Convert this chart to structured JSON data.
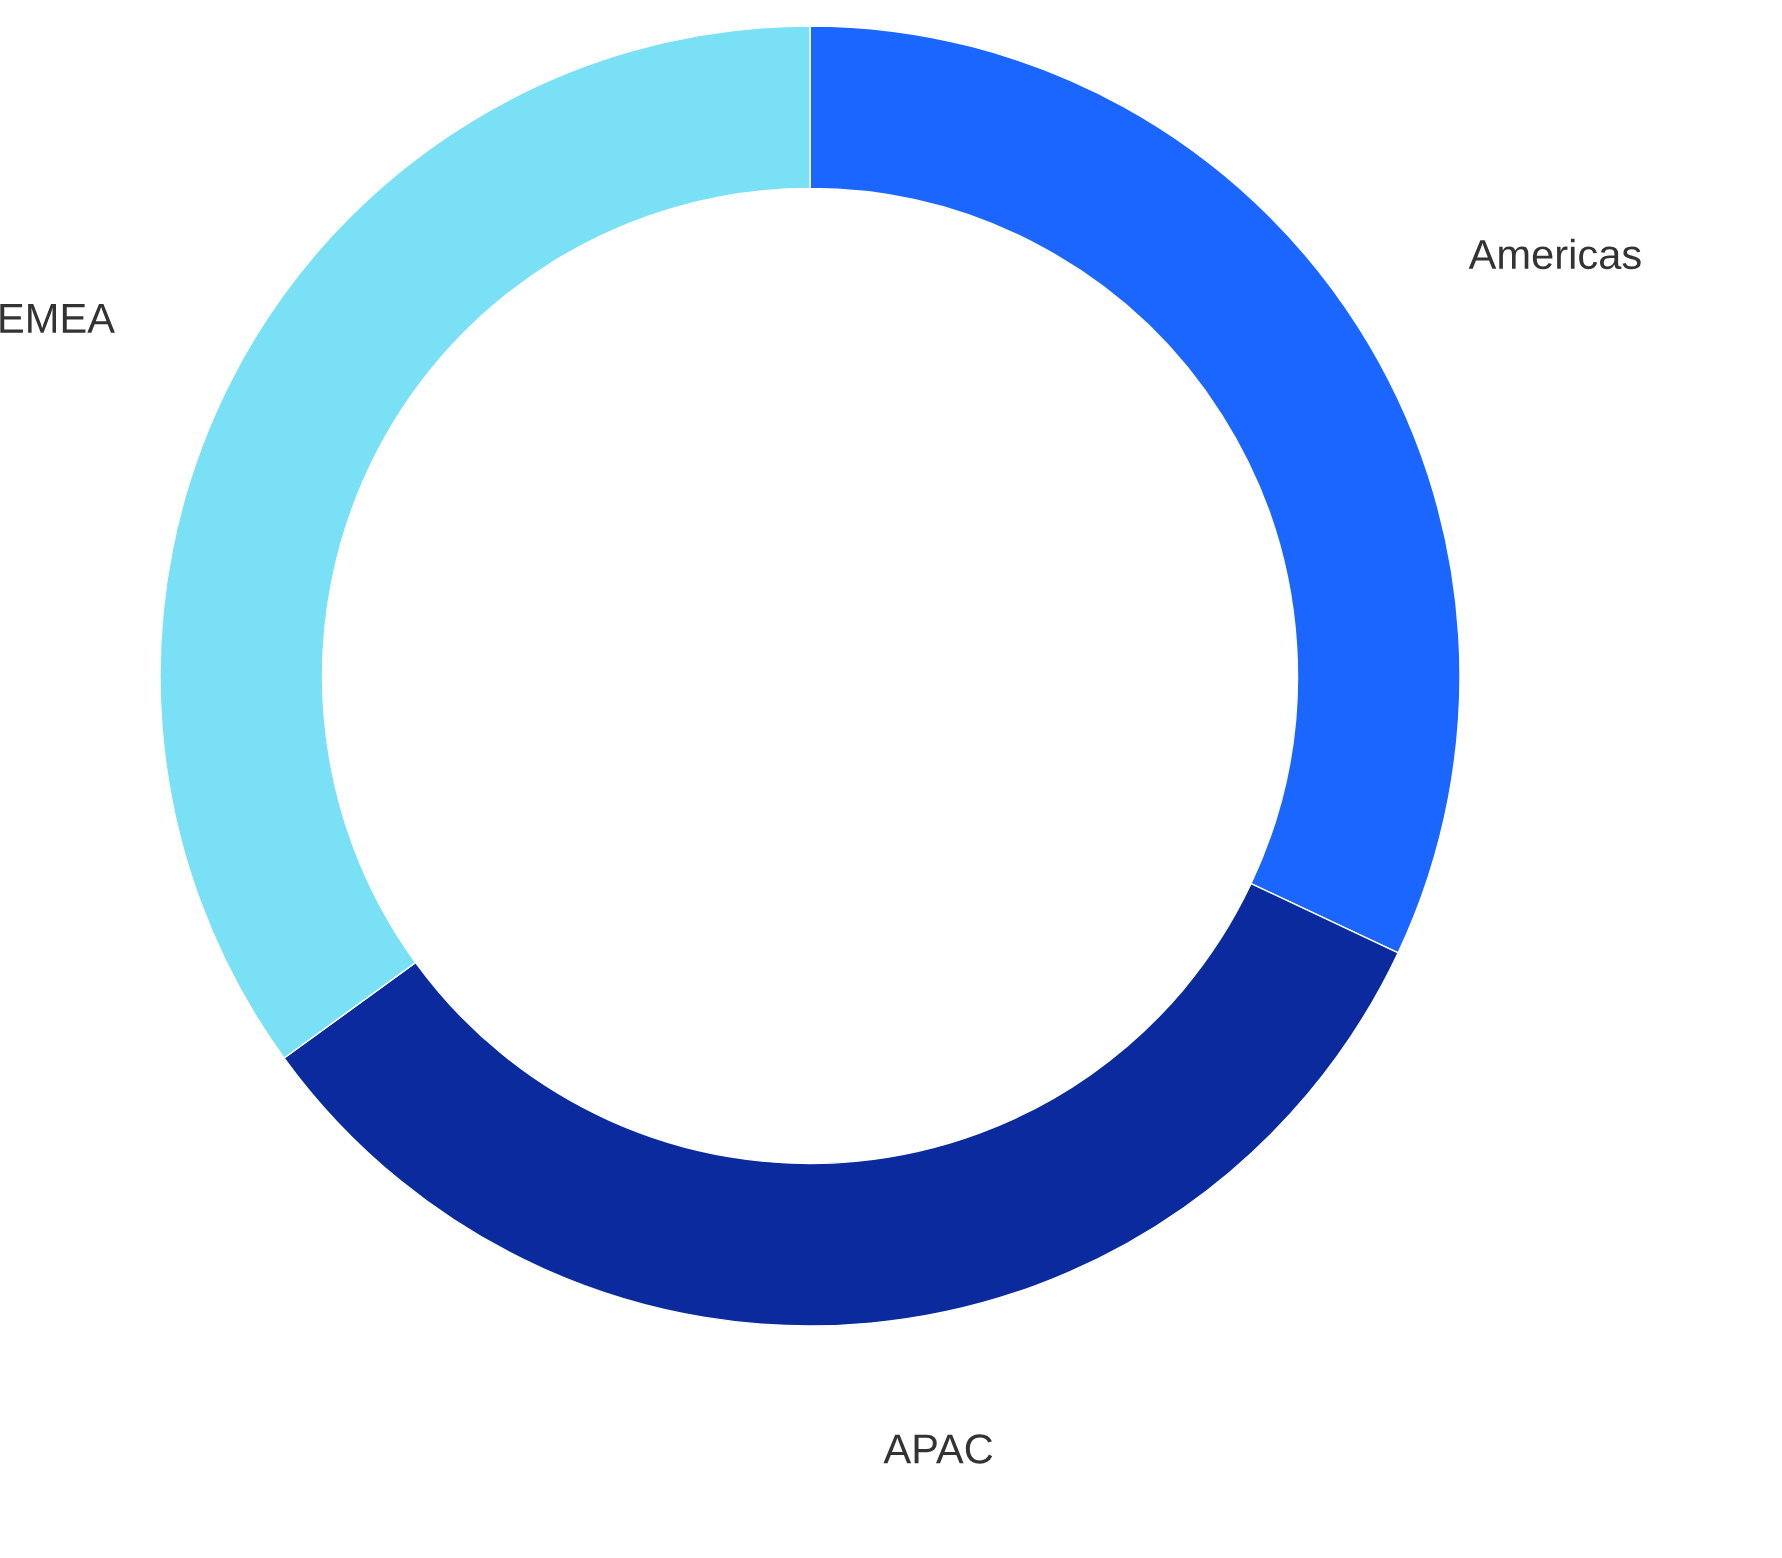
{
  "chart_data": {
    "type": "donut",
    "categories": [
      "Americas",
      "APAC",
      "EMEA"
    ],
    "values": [
      32,
      33,
      35
    ],
    "colors": [
      "#1a66ff",
      "#0a2a9e",
      "#7ae0f5"
    ],
    "legend": false
  }
}
